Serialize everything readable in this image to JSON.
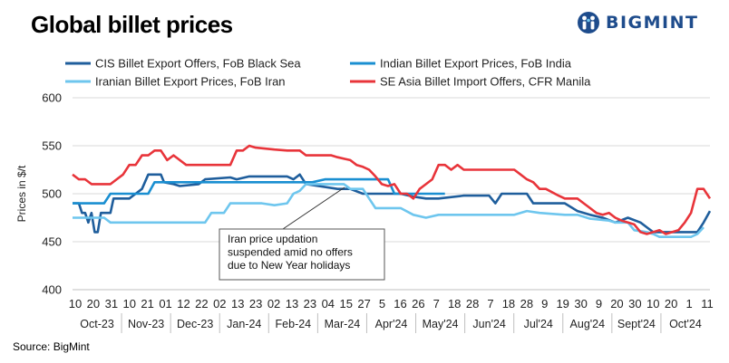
{
  "header": {
    "title": "Global billet prices",
    "logo_text": "BIGMINT",
    "logo_color": "#1e4c8c"
  },
  "source": "Source: BigMint",
  "annotation": "Iran price updation\nsuspended  amid no offers\ndue to New Year holidays",
  "chart_data": {
    "type": "line",
    "title": "Global billet prices",
    "ylabel": "Prices in $/t",
    "xlabel": "",
    "ylim": [
      400,
      600
    ],
    "yticks": [
      400,
      450,
      500,
      550,
      600
    ],
    "grid": true,
    "legend_position": "top",
    "tick_labels": [
      "10",
      "20",
      "31",
      "10",
      "21",
      "01",
      "12",
      "22",
      "02",
      "13",
      "23",
      "02",
      "13",
      "23",
      "04",
      "15",
      "27",
      "5",
      "16",
      "26",
      "7",
      "18",
      "28",
      "7",
      "18",
      "28",
      "9",
      "19",
      "30",
      "9",
      "20",
      "30",
      "10",
      "20",
      "1",
      "11"
    ],
    "month_labels": [
      "Oct-23",
      "Nov-23",
      "Dec-23",
      "Jan-24",
      "Feb-24",
      "Mar-24",
      "Apr'24",
      "May'24",
      "Jun'24",
      "Jul'24",
      "Aug'24",
      "Sept'24",
      "Oct'24"
    ],
    "series": [
      {
        "name": "CIS Billet Export Offers, FoB Black Sea",
        "color": "#1f5e9c",
        "values": [
          [
            0,
            490
          ],
          [
            1,
            490
          ],
          [
            1.5,
            480
          ],
          [
            2,
            480
          ],
          [
            2.5,
            470
          ],
          [
            3,
            480
          ],
          [
            3.5,
            460
          ],
          [
            4,
            460
          ],
          [
            4.5,
            480
          ],
          [
            6,
            480
          ],
          [
            6.5,
            495
          ],
          [
            9,
            495
          ],
          [
            10,
            500
          ],
          [
            11,
            505
          ],
          [
            12,
            520
          ],
          [
            14,
            520
          ],
          [
            14.5,
            512
          ],
          [
            16,
            510
          ],
          [
            17,
            508
          ],
          [
            20,
            510
          ],
          [
            21,
            515
          ],
          [
            25,
            517
          ],
          [
            26,
            515
          ],
          [
            28,
            518
          ],
          [
            34,
            518
          ],
          [
            35,
            515
          ],
          [
            36,
            520
          ],
          [
            37,
            510
          ],
          [
            42,
            505
          ],
          [
            44,
            505
          ],
          [
            46,
            500
          ],
          [
            52,
            500
          ],
          [
            54,
            497
          ],
          [
            56,
            495
          ],
          [
            58,
            495
          ],
          [
            62,
            498
          ],
          [
            66,
            498
          ],
          [
            67,
            490
          ],
          [
            68,
            500
          ],
          [
            72,
            500
          ],
          [
            73,
            490
          ],
          [
            78,
            490
          ],
          [
            80,
            482
          ],
          [
            82,
            478
          ],
          [
            84,
            475
          ],
          [
            86,
            470
          ],
          [
            88,
            475
          ],
          [
            90,
            470
          ],
          [
            91,
            465
          ],
          [
            92,
            460
          ],
          [
            95,
            460
          ],
          [
            97,
            460
          ],
          [
            99,
            460
          ],
          [
            100,
            470
          ],
          [
            101,
            482
          ]
        ]
      },
      {
        "name": "Indian Billet Export Prices, FoB India",
        "color": "#1a8fd1",
        "values": [
          [
            0,
            490
          ],
          [
            5,
            490
          ],
          [
            6,
            500
          ],
          [
            12,
            500
          ],
          [
            13,
            512
          ],
          [
            38,
            512
          ],
          [
            40,
            515
          ],
          [
            50,
            515
          ],
          [
            51,
            500
          ],
          [
            59,
            500
          ]
        ]
      },
      {
        "name": "Iranian Billet Export Prices, FoB Iran",
        "color": "#6ec6ee",
        "values": [
          [
            0,
            475
          ],
          [
            5,
            475
          ],
          [
            6,
            470
          ],
          [
            21,
            470
          ],
          [
            22,
            480
          ],
          [
            24,
            480
          ],
          [
            25,
            490
          ],
          [
            30,
            490
          ],
          [
            32,
            488
          ],
          [
            34,
            490
          ],
          [
            35,
            500
          ],
          [
            36,
            503
          ],
          [
            37,
            510
          ],
          [
            43,
            510
          ],
          [
            44,
            505
          ],
          [
            46,
            505
          ],
          [
            47,
            495
          ],
          null,
          [
            47,
            495
          ],
          [
            48,
            485
          ],
          [
            52,
            485
          ],
          [
            54,
            478
          ],
          [
            56,
            475
          ],
          [
            58,
            478
          ],
          [
            70,
            478
          ],
          [
            72,
            482
          ],
          [
            74,
            480
          ],
          [
            78,
            478
          ],
          [
            80,
            478
          ],
          [
            82,
            474
          ],
          [
            85,
            472
          ],
          [
            86,
            470
          ],
          [
            88,
            470
          ],
          [
            89,
            462
          ],
          [
            91,
            460
          ],
          [
            92,
            458
          ],
          [
            93,
            455
          ],
          [
            94,
            455
          ],
          [
            96,
            455
          ],
          [
            97,
            455
          ],
          [
            98,
            455
          ],
          [
            99,
            458
          ],
          [
            100,
            465
          ]
        ]
      },
      {
        "name": "SE Asia Billet Import Offers, CFR Manila",
        "color": "#e8343a",
        "values": [
          [
            0,
            520
          ],
          [
            1,
            515
          ],
          [
            2,
            515
          ],
          [
            3,
            510
          ],
          [
            6,
            510
          ],
          [
            7,
            515
          ],
          [
            8,
            520
          ],
          [
            9,
            530
          ],
          [
            10,
            530
          ],
          [
            11,
            540
          ],
          [
            12,
            540
          ],
          [
            13,
            545
          ],
          [
            14,
            545
          ],
          [
            15,
            535
          ],
          [
            16,
            540
          ],
          [
            17,
            535
          ],
          [
            18,
            530
          ],
          [
            21,
            530
          ],
          [
            23,
            530
          ],
          [
            25,
            530
          ],
          [
            26,
            545
          ],
          [
            27,
            545
          ],
          [
            28,
            550
          ],
          [
            29,
            548
          ],
          [
            32,
            546
          ],
          [
            34,
            545
          ],
          [
            36,
            545
          ],
          [
            37,
            540
          ],
          [
            41,
            540
          ],
          [
            42,
            538
          ],
          [
            44,
            535
          ],
          [
            45,
            530
          ],
          [
            46,
            528
          ],
          [
            47,
            525
          ],
          [
            48,
            518
          ],
          [
            49,
            510
          ],
          [
            50,
            508
          ],
          [
            51,
            510
          ],
          [
            52,
            500
          ],
          [
            53,
            500
          ],
          [
            54,
            495
          ],
          [
            55,
            505
          ],
          [
            56,
            510
          ],
          [
            57,
            515
          ],
          [
            58,
            530
          ],
          [
            59,
            530
          ],
          [
            60,
            525
          ],
          [
            61,
            530
          ],
          [
            62,
            525
          ],
          [
            65,
            525
          ],
          [
            70,
            525
          ],
          [
            71,
            520
          ],
          [
            72,
            515
          ],
          [
            73,
            512
          ],
          [
            74,
            505
          ],
          [
            75,
            505
          ],
          [
            77,
            498
          ],
          [
            78,
            495
          ],
          [
            79,
            495
          ],
          [
            80,
            495
          ],
          [
            81,
            490
          ],
          [
            82,
            485
          ],
          [
            83,
            480
          ],
          [
            84,
            478
          ],
          [
            85,
            480
          ],
          [
            86,
            475
          ],
          [
            87,
            472
          ],
          [
            88,
            470
          ],
          [
            89,
            468
          ],
          [
            90,
            460
          ],
          [
            91,
            458
          ],
          [
            92,
            460
          ],
          [
            93,
            462
          ],
          [
            94,
            458
          ],
          [
            95,
            460
          ],
          [
            96,
            462
          ],
          [
            97,
            470
          ],
          [
            98,
            480
          ],
          [
            99,
            505
          ],
          [
            100,
            505
          ],
          [
            101,
            495
          ]
        ]
      }
    ]
  }
}
